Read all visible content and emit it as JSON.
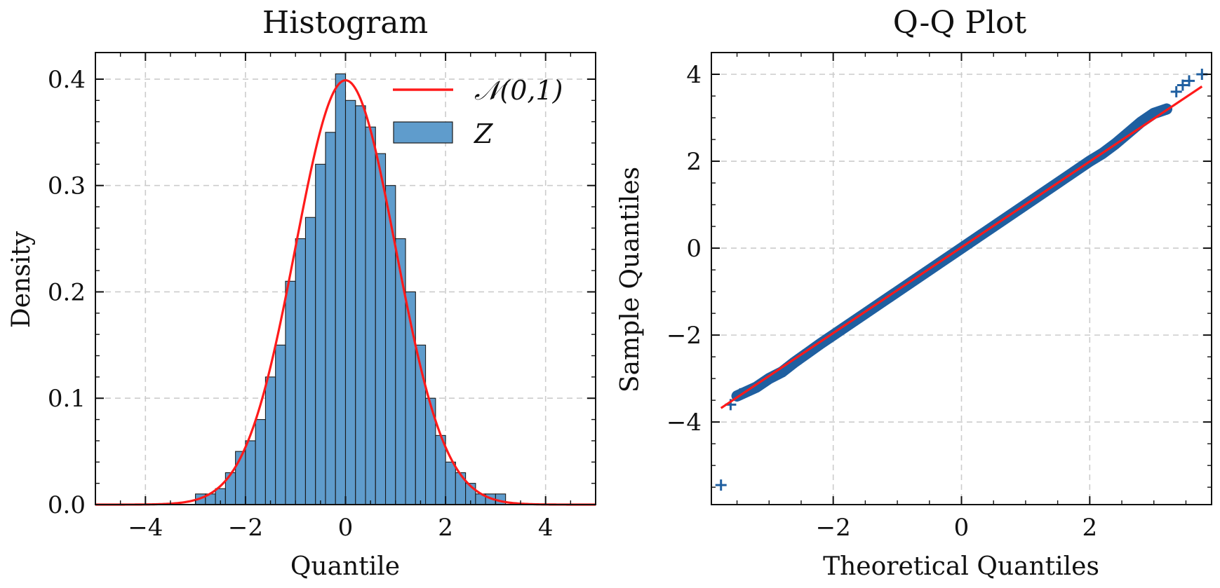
{
  "chart_data": [
    {
      "type": "bar",
      "title": "Histogram",
      "xlabel": "Quantile",
      "ylabel": "Density",
      "xlim": [
        -5,
        5
      ],
      "ylim": [
        0,
        0.425
      ],
      "xticks": [
        -4,
        -2,
        0,
        2,
        4
      ],
      "xtick_labels": [
        "−4",
        "−2",
        "0",
        "2",
        "4"
      ],
      "yticks": [
        0.0,
        0.1,
        0.2,
        0.3,
        0.4
      ],
      "ytick_labels": [
        "0.0",
        "0.1",
        "0.2",
        "0.3",
        "0.4"
      ],
      "grid": true,
      "legend_position": "top-right",
      "bin_width": 0.2,
      "bins_left": [
        -3.0,
        -2.8,
        -2.6,
        -2.4,
        -2.2,
        -2.0,
        -1.8,
        -1.6,
        -1.4,
        -1.2,
        -1.0,
        -0.8,
        -0.6,
        -0.4,
        -0.2,
        0.0,
        0.2,
        0.4,
        0.6,
        0.8,
        1.0,
        1.2,
        1.4,
        1.6,
        1.8,
        2.0,
        2.2,
        2.4,
        2.6,
        2.8,
        3.0
      ],
      "values": [
        0.01,
        0.01,
        0.015,
        0.03,
        0.05,
        0.06,
        0.08,
        0.12,
        0.15,
        0.21,
        0.25,
        0.27,
        0.32,
        0.35,
        0.405,
        0.38,
        0.375,
        0.355,
        0.33,
        0.3,
        0.25,
        0.2,
        0.15,
        0.1,
        0.065,
        0.04,
        0.03,
        0.02,
        0.01,
        0.01,
        0.01
      ],
      "series": [
        {
          "name": "𝒩(0,1)",
          "kind": "line",
          "color": "#ff1a1a",
          "distribution": "normal",
          "mean": 0,
          "std": 1
        },
        {
          "name": "Z",
          "kind": "bar",
          "color": "#5f9ccc",
          "edgecolor": "#1a1a1a"
        }
      ]
    },
    {
      "type": "scatter",
      "title": "Q-Q Plot",
      "xlabel": "Theoretical Quantiles",
      "ylabel": "Sample Quantiles",
      "xlim": [
        -3.9,
        3.9
      ],
      "ylim": [
        -5.9,
        4.5
      ],
      "xticks": [
        -2,
        0,
        2
      ],
      "xtick_labels": [
        "−2",
        "0",
        "2"
      ],
      "yticks": [
        -4,
        -2,
        0,
        2,
        4
      ],
      "ytick_labels": [
        "−4",
        "−2",
        "0",
        "2",
        "4"
      ],
      "grid": true,
      "marker": "+",
      "marker_color": "#1f5fa0",
      "line_color": "#ff1a1a",
      "reference_line": {
        "x": [
          -3.75,
          3.75
        ],
        "y": [
          -3.68,
          3.72
        ]
      },
      "band_points": [
        [
          -3.5,
          -3.4
        ],
        [
          -3.2,
          -3.2
        ],
        [
          -3.0,
          -3.0
        ],
        [
          -2.8,
          -2.85
        ],
        [
          -2.6,
          -2.62
        ],
        [
          -2.4,
          -2.41
        ],
        [
          -2.2,
          -2.2
        ],
        [
          -2.0,
          -2.0
        ],
        [
          -1.5,
          -1.5
        ],
        [
          -1.0,
          -1.0
        ],
        [
          -0.5,
          -0.5
        ],
        [
          0.0,
          0.0
        ],
        [
          0.5,
          0.5
        ],
        [
          1.0,
          1.0
        ],
        [
          1.5,
          1.5
        ],
        [
          2.0,
          2.0
        ],
        [
          2.2,
          2.18
        ],
        [
          2.4,
          2.4
        ],
        [
          2.6,
          2.65
        ],
        [
          2.8,
          2.9
        ],
        [
          3.0,
          3.1
        ],
        [
          3.2,
          3.2
        ]
      ],
      "outlier_points": [
        [
          -3.75,
          -5.45
        ],
        [
          -3.6,
          -3.6
        ],
        [
          -3.45,
          -3.35
        ],
        [
          3.35,
          3.6
        ],
        [
          3.45,
          3.75
        ],
        [
          3.55,
          3.85
        ],
        [
          3.75,
          4.0
        ]
      ]
    }
  ]
}
